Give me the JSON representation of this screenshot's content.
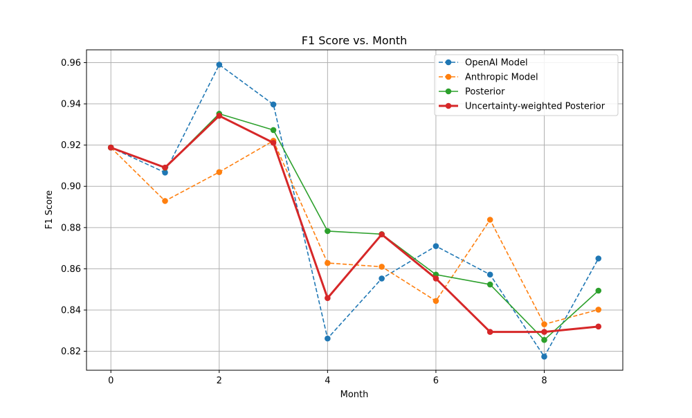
{
  "chart_data": {
    "type": "line",
    "title": "F1 Score vs. Month",
    "xlabel": "Month",
    "ylabel": "F1 Score",
    "xlim": [
      -0.45,
      9.45
    ],
    "ylim": [
      0.8108,
      0.9662
    ],
    "x_ticks": [
      0,
      2,
      4,
      6,
      8
    ],
    "y_ticks": [
      0.82,
      0.84,
      0.86,
      0.88,
      0.9,
      0.92,
      0.94,
      0.96
    ],
    "x_tick_labels": [
      "0",
      "2",
      "4",
      "6",
      "8"
    ],
    "y_tick_labels": [
      "0.82",
      "0.84",
      "0.86",
      "0.88",
      "0.90",
      "0.92",
      "0.94",
      "0.96"
    ],
    "grid": true,
    "legend_position": "top-right",
    "x": [
      0,
      1,
      2,
      3,
      4,
      5,
      6,
      7,
      8,
      9
    ],
    "series": [
      {
        "name": "OpenAI Model",
        "color": "#1f77b4",
        "line_style": "dashed",
        "values": [
          0.9188,
          0.9067,
          0.959,
          0.9397,
          0.8262,
          0.8553,
          0.871,
          0.8572,
          0.8174,
          0.865
        ]
      },
      {
        "name": "Anthropic Model",
        "color": "#ff7f0e",
        "line_style": "dashed",
        "values": [
          0.9188,
          0.8929,
          0.9069,
          0.9221,
          0.8628,
          0.861,
          0.8444,
          0.8838,
          0.8331,
          0.8402
        ]
      },
      {
        "name": "Posterior",
        "color": "#2ca02c",
        "line_style": "solid",
        "values": [
          0.9188,
          0.909,
          0.9352,
          0.9273,
          0.8783,
          0.8768,
          0.8572,
          0.8524,
          0.8255,
          0.8494
        ]
      },
      {
        "name": "Uncertainty-weighted Posterior",
        "color": "#d62728",
        "line_style": "solid-thick",
        "values": [
          0.9188,
          0.9091,
          0.9342,
          0.9211,
          0.8458,
          0.8767,
          0.8553,
          0.8294,
          0.8294,
          0.832
        ]
      }
    ]
  }
}
